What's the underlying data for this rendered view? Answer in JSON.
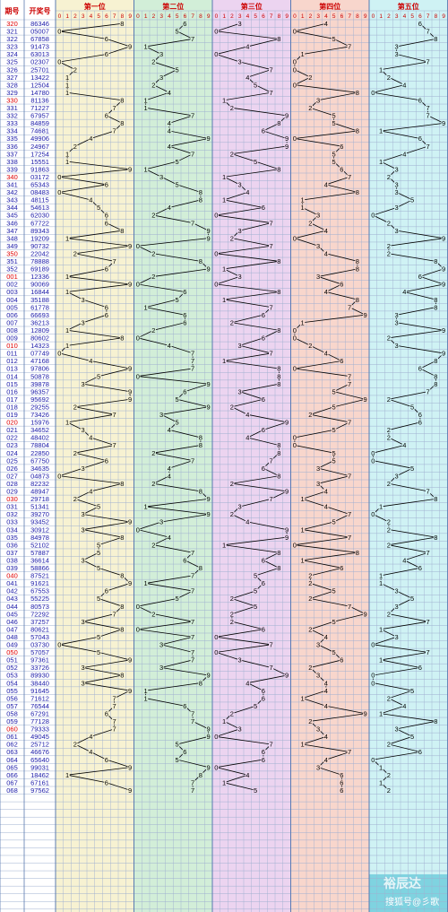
{
  "chart_data": {
    "type": "line",
    "header": {
      "period_label": "期号",
      "draw_label": "开奖号",
      "digits_axis": [
        "0",
        "1",
        "2",
        "3",
        "4",
        "5",
        "6",
        "7",
        "8",
        "9"
      ]
    },
    "columns": [
      {
        "name": "第一位",
        "bg": "#f7f2d2"
      },
      {
        "name": "第二位",
        "bg": "#d2eed8"
      },
      {
        "name": "第三位",
        "bg": "#ecd4f0"
      },
      {
        "name": "第四位",
        "bg": "#f8d6cc"
      },
      {
        "name": "第五位",
        "bg": "#cff2f4"
      }
    ],
    "rows": [
      {
        "period": "320",
        "draw": "86346"
      },
      {
        "period": "321",
        "draw": "05007"
      },
      {
        "period": "322",
        "draw": "67858"
      },
      {
        "period": "323",
        "draw": "91473"
      },
      {
        "period": "324",
        "draw": "63013"
      },
      {
        "period": "325",
        "draw": "02307"
      },
      {
        "period": "326",
        "draw": "25701"
      },
      {
        "period": "327",
        "draw": "13422"
      },
      {
        "period": "328",
        "draw": "12504"
      },
      {
        "period": "329",
        "draw": "14780"
      },
      {
        "period": "330",
        "draw": "81136"
      },
      {
        "period": "331",
        "draw": "71227"
      },
      {
        "period": "332",
        "draw": "67957"
      },
      {
        "period": "333",
        "draw": "84859"
      },
      {
        "period": "334",
        "draw": "74681"
      },
      {
        "period": "335",
        "draw": "49906"
      },
      {
        "period": "336",
        "draw": "24967"
      },
      {
        "period": "337",
        "draw": "17254"
      },
      {
        "period": "338",
        "draw": "15551"
      },
      {
        "period": "339",
        "draw": "91863"
      },
      {
        "period": "340",
        "draw": "03172"
      },
      {
        "period": "341",
        "draw": "65343"
      },
      {
        "period": "342",
        "draw": "08483"
      },
      {
        "period": "343",
        "draw": "48115"
      },
      {
        "period": "344",
        "draw": "54613"
      },
      {
        "period": "345",
        "draw": "62030"
      },
      {
        "period": "346",
        "draw": "67722"
      },
      {
        "period": "347",
        "draw": "89343"
      },
      {
        "period": "348",
        "draw": "19209"
      },
      {
        "period": "349",
        "draw": "90732"
      },
      {
        "period": "350",
        "draw": "22042"
      },
      {
        "period": "351",
        "draw": "78888"
      },
      {
        "period": "352",
        "draw": "69189"
      },
      {
        "period": "001",
        "draw": "12336"
      },
      {
        "period": "002",
        "draw": "90069"
      },
      {
        "period": "003",
        "draw": "16844"
      },
      {
        "period": "004",
        "draw": "35188"
      },
      {
        "period": "005",
        "draw": "61778"
      },
      {
        "period": "006",
        "draw": "66693"
      },
      {
        "period": "007",
        "draw": "36213"
      },
      {
        "period": "008",
        "draw": "12809"
      },
      {
        "period": "009",
        "draw": "80602"
      },
      {
        "period": "010",
        "draw": "14323"
      },
      {
        "period": "011",
        "draw": "07749"
      },
      {
        "period": "012",
        "draw": "47168"
      },
      {
        "period": "013",
        "draw": "97806"
      },
      {
        "period": "014",
        "draw": "50878"
      },
      {
        "period": "015",
        "draw": "39878"
      },
      {
        "period": "016",
        "draw": "96357"
      },
      {
        "period": "017",
        "draw": "95692"
      },
      {
        "period": "018",
        "draw": "29255"
      },
      {
        "period": "019",
        "draw": "73426"
      },
      {
        "period": "020",
        "draw": "15976"
      },
      {
        "period": "021",
        "draw": "34652"
      },
      {
        "period": "022",
        "draw": "48402"
      },
      {
        "period": "023",
        "draw": "78804"
      },
      {
        "period": "024",
        "draw": "22850"
      },
      {
        "period": "025",
        "draw": "67750"
      },
      {
        "period": "026",
        "draw": "34635"
      },
      {
        "period": "027",
        "draw": "04873"
      },
      {
        "period": "028",
        "draw": "82232"
      },
      {
        "period": "029",
        "draw": "48947"
      },
      {
        "period": "030",
        "draw": "29718"
      },
      {
        "period": "031",
        "draw": "51341"
      },
      {
        "period": "032",
        "draw": "39270"
      },
      {
        "period": "033",
        "draw": "93452"
      },
      {
        "period": "034",
        "draw": "30912"
      },
      {
        "period": "035",
        "draw": "84978"
      },
      {
        "period": "036",
        "draw": "52102"
      },
      {
        "period": "037",
        "draw": "57887"
      },
      {
        "period": "038",
        "draw": "36614"
      },
      {
        "period": "039",
        "draw": "58866"
      },
      {
        "period": "040",
        "draw": "87521"
      },
      {
        "period": "041",
        "draw": "91621"
      },
      {
        "period": "042",
        "draw": "67553"
      },
      {
        "period": "043",
        "draw": "55225"
      },
      {
        "period": "044",
        "draw": "80573"
      },
      {
        "period": "045",
        "draw": "72292"
      },
      {
        "period": "046",
        "draw": "37257"
      },
      {
        "period": "047",
        "draw": "80621"
      },
      {
        "period": "048",
        "draw": "57043"
      },
      {
        "period": "049",
        "draw": "03730"
      },
      {
        "period": "050",
        "draw": "57057"
      },
      {
        "period": "051",
        "draw": "97361"
      },
      {
        "period": "052",
        "draw": "33726"
      },
      {
        "period": "053",
        "draw": "89930"
      },
      {
        "period": "054",
        "draw": "38440"
      },
      {
        "period": "055",
        "draw": "91645"
      },
      {
        "period": "056",
        "draw": "71612"
      },
      {
        "period": "057",
        "draw": "76544"
      },
      {
        "period": "058",
        "draw": "67291"
      },
      {
        "period": "059",
        "draw": "77128"
      },
      {
        "period": "060",
        "draw": "79333"
      },
      {
        "period": "061",
        "draw": "49045"
      },
      {
        "period": "062",
        "draw": "25712"
      },
      {
        "period": "063",
        "draw": "46676"
      },
      {
        "period": "064",
        "draw": "65640"
      },
      {
        "period": "065",
        "draw": "99031"
      },
      {
        "period": "066",
        "draw": "18462"
      },
      {
        "period": "067",
        "draw": "67161"
      },
      {
        "period": "068",
        "draw": "97562"
      }
    ],
    "red_periods": [
      "320",
      "330",
      "340",
      "350",
      "001",
      "010",
      "020",
      "030",
      "040",
      "050",
      "060"
    ],
    "line_color": "#000000",
    "grid_color": "#9fb0d0"
  },
  "watermark": {
    "brand": "裕辰达",
    "credit": "搜狐号@彡歌"
  }
}
